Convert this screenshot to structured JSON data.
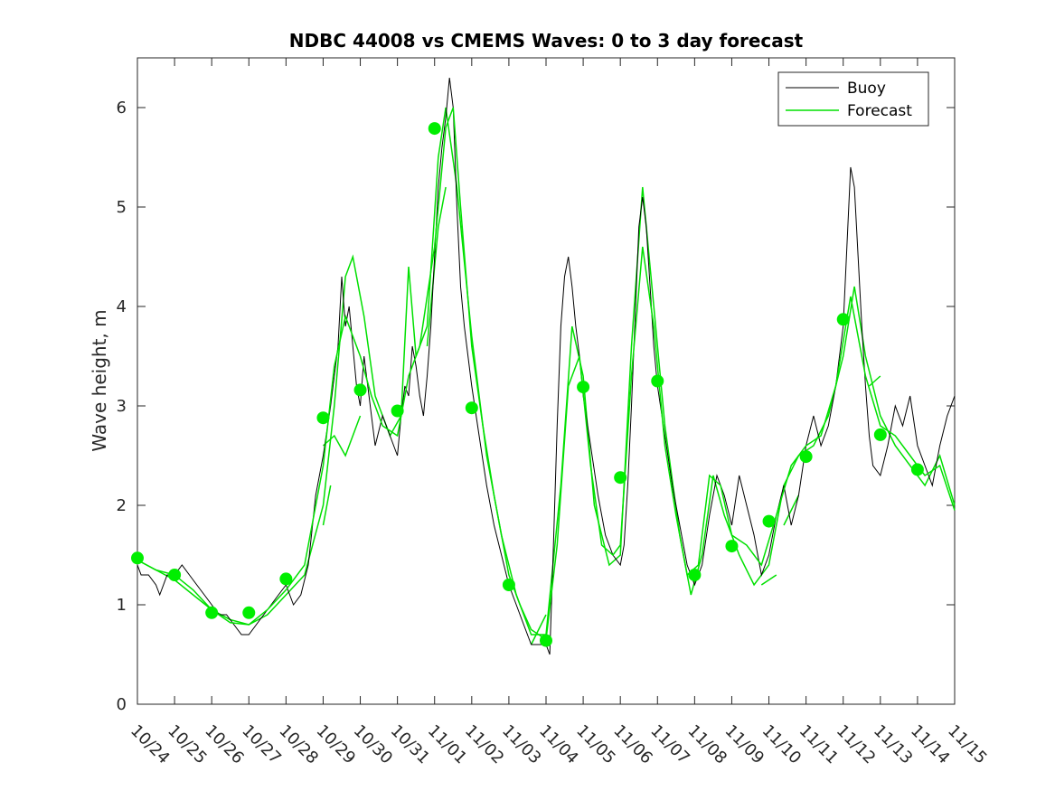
{
  "chart_data": {
    "type": "line",
    "title": "NDBC 44008 vs CMEMS Waves: 0 to 3 day forecast",
    "xlabel": "",
    "ylabel": "Wave height, m",
    "x_ticks": [
      "10/24",
      "10/25",
      "10/26",
      "10/27",
      "10/28",
      "10/29",
      "10/30",
      "10/31",
      "11/01",
      "11/02",
      "11/03",
      "11/04",
      "11/05",
      "11/06",
      "11/07",
      "11/08",
      "11/09",
      "11/10",
      "11/11",
      "11/12",
      "11/13",
      "11/14",
      "11/15"
    ],
    "xlim": [
      0,
      22
    ],
    "ylim": [
      0,
      6.5
    ],
    "y_ticks": [
      0,
      1,
      2,
      3,
      4,
      5,
      6
    ],
    "legend": {
      "placement": "top-right",
      "entries": [
        {
          "name": "Buoy",
          "color": "#000000"
        },
        {
          "name": "Forecast",
          "color": "#00cc00"
        }
      ]
    },
    "colors": {
      "buoy": "#000000",
      "forecast": "#00e000",
      "marker": "#00ee00"
    },
    "series": [
      {
        "name": "Buoy",
        "points": [
          [
            0,
            1.4
          ],
          [
            0.1,
            1.3
          ],
          [
            0.3,
            1.3
          ],
          [
            0.5,
            1.2
          ],
          [
            0.6,
            1.1
          ],
          [
            0.8,
            1.3
          ],
          [
            1,
            1.3
          ],
          [
            1.2,
            1.4
          ],
          [
            1.4,
            1.3
          ],
          [
            1.6,
            1.2
          ],
          [
            1.8,
            1.1
          ],
          [
            2,
            1.0
          ],
          [
            2.2,
            0.9
          ],
          [
            2.4,
            0.9
          ],
          [
            2.6,
            0.8
          ],
          [
            2.8,
            0.7
          ],
          [
            3,
            0.7
          ],
          [
            3.2,
            0.8
          ],
          [
            3.4,
            0.9
          ],
          [
            3.6,
            1.0
          ],
          [
            3.8,
            1.1
          ],
          [
            4,
            1.2
          ],
          [
            4.2,
            1.0
          ],
          [
            4.4,
            1.1
          ],
          [
            4.6,
            1.4
          ],
          [
            4.8,
            2.1
          ],
          [
            5,
            2.5
          ],
          [
            5.2,
            3.0
          ],
          [
            5.4,
            3.6
          ],
          [
            5.5,
            4.3
          ],
          [
            5.6,
            3.8
          ],
          [
            5.7,
            4.0
          ],
          [
            5.8,
            3.6
          ],
          [
            5.9,
            3.2
          ],
          [
            6,
            3.0
          ],
          [
            6.1,
            3.5
          ],
          [
            6.2,
            3.2
          ],
          [
            6.3,
            2.9
          ],
          [
            6.4,
            2.6
          ],
          [
            6.6,
            2.9
          ],
          [
            6.8,
            2.7
          ],
          [
            7,
            2.5
          ],
          [
            7.1,
            2.9
          ],
          [
            7.2,
            3.2
          ],
          [
            7.3,
            3.1
          ],
          [
            7.4,
            3.6
          ],
          [
            7.5,
            3.4
          ],
          [
            7.6,
            3.1
          ],
          [
            7.7,
            2.9
          ],
          [
            7.8,
            3.3
          ],
          [
            7.9,
            3.8
          ],
          [
            8,
            4.5
          ],
          [
            8.1,
            5.2
          ],
          [
            8.2,
            5.6
          ],
          [
            8.3,
            5.9
          ],
          [
            8.4,
            6.3
          ],
          [
            8.5,
            6.0
          ],
          [
            8.6,
            5.0
          ],
          [
            8.7,
            4.2
          ],
          [
            8.8,
            3.8
          ],
          [
            9,
            3.2
          ],
          [
            9.2,
            2.7
          ],
          [
            9.4,
            2.2
          ],
          [
            9.6,
            1.8
          ],
          [
            9.8,
            1.5
          ],
          [
            10,
            1.2
          ],
          [
            10.2,
            1.0
          ],
          [
            10.4,
            0.8
          ],
          [
            10.6,
            0.6
          ],
          [
            10.8,
            0.6
          ],
          [
            11,
            0.6
          ],
          [
            11.1,
            0.5
          ],
          [
            11.2,
            1.6
          ],
          [
            11.3,
            2.8
          ],
          [
            11.4,
            3.8
          ],
          [
            11.5,
            4.3
          ],
          [
            11.6,
            4.5
          ],
          [
            11.7,
            4.2
          ],
          [
            11.8,
            3.8
          ],
          [
            11.9,
            3.5
          ],
          [
            12,
            3.1
          ],
          [
            12.2,
            2.6
          ],
          [
            12.4,
            2.1
          ],
          [
            12.6,
            1.7
          ],
          [
            12.8,
            1.5
          ],
          [
            13,
            1.4
          ],
          [
            13.1,
            1.6
          ],
          [
            13.2,
            2.2
          ],
          [
            13.3,
            3.0
          ],
          [
            13.4,
            3.9
          ],
          [
            13.5,
            4.8
          ],
          [
            13.6,
            5.1
          ],
          [
            13.7,
            4.8
          ],
          [
            13.8,
            4.2
          ],
          [
            13.9,
            3.6
          ],
          [
            14,
            3.2
          ],
          [
            14.2,
            2.7
          ],
          [
            14.4,
            2.2
          ],
          [
            14.6,
            1.8
          ],
          [
            14.8,
            1.4
          ],
          [
            15,
            1.2
          ],
          [
            15.2,
            1.4
          ],
          [
            15.4,
            1.9
          ],
          [
            15.6,
            2.3
          ],
          [
            15.8,
            2.1
          ],
          [
            16,
            1.8
          ],
          [
            16.2,
            2.3
          ],
          [
            16.4,
            2.0
          ],
          [
            16.6,
            1.7
          ],
          [
            16.8,
            1.3
          ],
          [
            17,
            1.5
          ],
          [
            17.2,
            1.9
          ],
          [
            17.4,
            2.2
          ],
          [
            17.6,
            1.8
          ],
          [
            17.8,
            2.1
          ],
          [
            18,
            2.6
          ],
          [
            18.2,
            2.9
          ],
          [
            18.4,
            2.6
          ],
          [
            18.6,
            2.8
          ],
          [
            18.8,
            3.2
          ],
          [
            19,
            3.8
          ],
          [
            19.1,
            4.6
          ],
          [
            19.2,
            5.4
          ],
          [
            19.3,
            5.2
          ],
          [
            19.4,
            4.5
          ],
          [
            19.5,
            3.8
          ],
          [
            19.6,
            3.2
          ],
          [
            19.7,
            2.7
          ],
          [
            19.8,
            2.4
          ],
          [
            20,
            2.3
          ],
          [
            20.2,
            2.6
          ],
          [
            20.4,
            3.0
          ],
          [
            20.6,
            2.8
          ],
          [
            20.8,
            3.1
          ],
          [
            21,
            2.6
          ],
          [
            21.2,
            2.4
          ],
          [
            21.4,
            2.2
          ],
          [
            21.6,
            2.6
          ],
          [
            21.8,
            2.9
          ],
          [
            22,
            3.1
          ]
        ]
      },
      {
        "name": "Forecast",
        "points": [
          [
            0,
            1.45
          ],
          [
            0.5,
            1.35
          ],
          [
            1,
            1.3
          ],
          [
            1.5,
            1.15
          ],
          [
            2,
            0.95
          ],
          [
            2.5,
            0.82
          ],
          [
            3,
            0.8
          ],
          [
            3.5,
            0.95
          ],
          [
            4,
            1.15
          ],
          [
            4.5,
            1.4
          ],
          [
            5,
            2.4
          ],
          [
            5.3,
            3.4
          ],
          [
            5.6,
            3.9
          ],
          [
            6,
            3.5
          ],
          [
            6.3,
            3.1
          ],
          [
            6.6,
            2.8
          ],
          [
            7,
            2.7
          ],
          [
            7.3,
            3.3
          ],
          [
            7.6,
            3.6
          ],
          [
            8,
            4.6
          ],
          [
            8.3,
            5.8
          ],
          [
            8.5,
            6.0
          ],
          [
            8.7,
            5.0
          ],
          [
            9,
            3.6
          ],
          [
            9.3,
            2.8
          ],
          [
            9.6,
            2.1
          ],
          [
            10,
            1.3
          ],
          [
            10.3,
            1.0
          ],
          [
            10.6,
            0.75
          ],
          [
            11,
            0.65
          ],
          [
            11.3,
            1.6
          ],
          [
            11.6,
            3.2
          ],
          [
            11.9,
            3.5
          ],
          [
            12.2,
            2.4
          ],
          [
            12.5,
            1.6
          ],
          [
            12.8,
            1.5
          ],
          [
            13,
            1.6
          ],
          [
            13.3,
            3.3
          ],
          [
            13.6,
            4.6
          ],
          [
            13.9,
            3.8
          ],
          [
            14.2,
            2.6
          ],
          [
            14.5,
            1.9
          ],
          [
            14.8,
            1.3
          ],
          [
            15.1,
            1.4
          ],
          [
            15.4,
            2.3
          ],
          [
            15.7,
            2.2
          ],
          [
            16,
            1.7
          ],
          [
            16.4,
            1.6
          ],
          [
            16.8,
            1.4
          ],
          [
            17.2,
            1.9
          ],
          [
            17.6,
            2.4
          ],
          [
            18,
            2.6
          ],
          [
            18.4,
            2.7
          ],
          [
            18.8,
            3.2
          ],
          [
            19.2,
            4.1
          ],
          [
            19.6,
            3.3
          ],
          [
            20,
            2.8
          ],
          [
            20.4,
            2.7
          ],
          [
            20.8,
            2.5
          ],
          [
            21.2,
            2.3
          ],
          [
            21.6,
            2.4
          ],
          [
            22,
            1.95
          ]
        ]
      }
    ],
    "extra_forecast_lines": [
      [
        [
          0,
          1.45
        ],
        [
          0.5,
          1.35
        ],
        [
          1,
          1.25
        ],
        [
          1.5,
          1.1
        ],
        [
          2,
          0.95
        ],
        [
          2.5,
          0.85
        ],
        [
          3,
          0.8
        ],
        [
          3.5,
          0.9
        ],
        [
          4,
          1.1
        ],
        [
          4.5,
          1.3
        ],
        [
          5,
          2.0
        ],
        [
          5.3,
          3.0
        ],
        [
          5.6,
          4.3
        ],
        [
          5.8,
          4.5
        ],
        [
          6.1,
          3.9
        ],
        [
          6.4,
          3.1
        ],
        [
          6.8,
          2.7
        ],
        [
          7.1,
          2.9
        ],
        [
          7.3,
          4.4
        ],
        [
          7.5,
          3.5
        ],
        [
          7.8,
          3.8
        ],
        [
          8.1,
          5.5
        ],
        [
          8.3,
          6.0
        ],
        [
          8.6,
          5.2
        ],
        [
          9,
          3.7
        ],
        [
          9.4,
          2.5
        ],
        [
          9.8,
          1.7
        ],
        [
          10.2,
          1.1
        ],
        [
          10.6,
          0.7
        ],
        [
          11,
          0.7
        ],
        [
          11.4,
          2.2
        ],
        [
          11.7,
          3.8
        ],
        [
          12,
          3.3
        ],
        [
          12.3,
          2.0
        ],
        [
          12.7,
          1.4
        ],
        [
          13,
          1.5
        ],
        [
          13.3,
          3.6
        ],
        [
          13.6,
          5.2
        ],
        [
          13.9,
          4.0
        ],
        [
          14.2,
          2.8
        ],
        [
          14.6,
          1.7
        ],
        [
          14.9,
          1.1
        ],
        [
          15.2,
          1.5
        ],
        [
          15.5,
          2.3
        ],
        [
          15.8,
          1.9
        ],
        [
          16.2,
          1.5
        ],
        [
          16.6,
          1.2
        ],
        [
          17,
          1.4
        ],
        [
          17.4,
          2.2
        ],
        [
          17.8,
          2.5
        ],
        [
          18.2,
          2.6
        ],
        [
          18.6,
          2.9
        ],
        [
          19,
          3.5
        ],
        [
          19.3,
          4.2
        ],
        [
          19.6,
          3.5
        ],
        [
          20,
          2.9
        ],
        [
          20.4,
          2.6
        ],
        [
          20.8,
          2.4
        ],
        [
          21.2,
          2.2
        ],
        [
          21.6,
          2.5
        ],
        [
          22,
          2.0
        ]
      ],
      [
        [
          5,
          1.8
        ],
        [
          5.2,
          2.2
        ]
      ],
      [
        [
          5,
          2.6
        ],
        [
          5.3,
          2.7
        ],
        [
          5.6,
          2.5
        ],
        [
          6,
          2.9
        ]
      ],
      [
        [
          7.8,
          3.6
        ],
        [
          8.1,
          4.8
        ],
        [
          8.3,
          5.2
        ]
      ],
      [
        [
          10.6,
          0.6
        ],
        [
          11,
          0.9
        ]
      ],
      [
        [
          16.8,
          1.2
        ],
        [
          17.2,
          1.3
        ]
      ],
      [
        [
          17.4,
          1.8
        ],
        [
          17.8,
          2.1
        ]
      ],
      [
        [
          19.7,
          3.2
        ],
        [
          20,
          3.3
        ]
      ]
    ],
    "markers": [
      [
        0,
        1.47
      ],
      [
        1,
        1.3
      ],
      [
        2,
        0.92
      ],
      [
        3,
        0.92
      ],
      [
        4,
        1.26
      ],
      [
        5,
        2.88
      ],
      [
        6,
        3.16
      ],
      [
        7,
        2.95
      ],
      [
        8,
        5.79
      ],
      [
        9,
        2.98
      ],
      [
        10,
        1.2
      ],
      [
        11,
        0.64
      ],
      [
        12,
        3.19
      ],
      [
        13,
        2.28
      ],
      [
        14,
        3.25
      ],
      [
        15,
        1.3
      ],
      [
        16,
        1.59
      ],
      [
        17,
        1.84
      ],
      [
        18,
        2.49
      ],
      [
        19,
        3.87
      ],
      [
        20,
        2.71
      ],
      [
        21,
        2.36
      ]
    ]
  }
}
